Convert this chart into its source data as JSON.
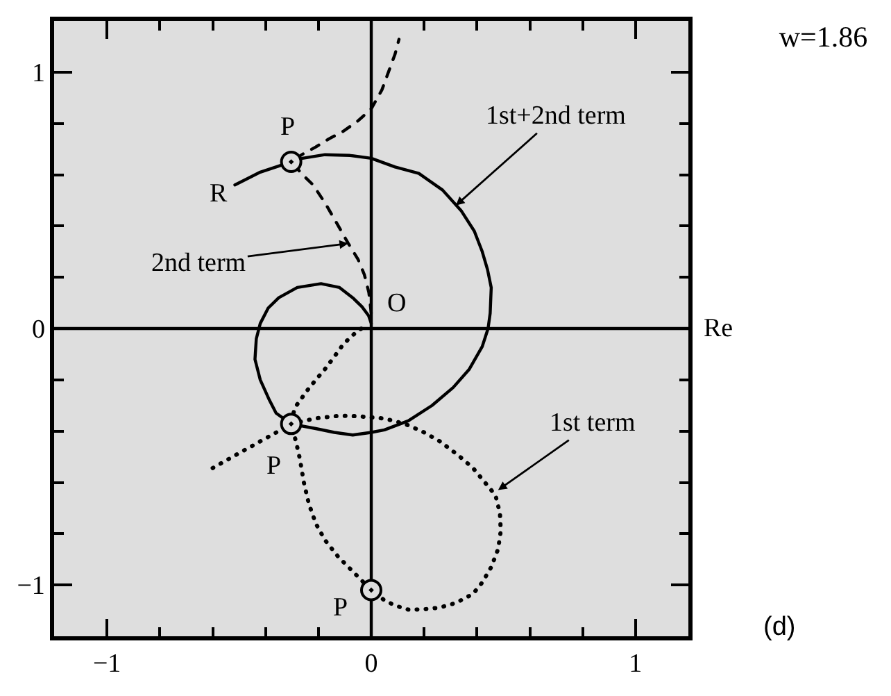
{
  "chart_data": {
    "type": "line",
    "title": "w=1.86",
    "xlim": [
      -1.2,
      1.2
    ],
    "ylim": [
      -1.2,
      1.2
    ],
    "xticks": [
      {
        "value": -1,
        "label": "−1"
      },
      {
        "value": -0.8,
        "label": null
      },
      {
        "value": -0.6,
        "label": null
      },
      {
        "value": -0.4,
        "label": null
      },
      {
        "value": -0.2,
        "label": null
      },
      0,
      {
        "value": 0.2,
        "label": null
      },
      {
        "value": 0.4,
        "label": null
      },
      {
        "value": 0.6,
        "label": null
      },
      {
        "value": 0.8,
        "label": null
      },
      1
    ],
    "yticks": [
      {
        "value": -1,
        "label": "−1"
      },
      {
        "value": -0.8,
        "label": null
      },
      {
        "value": -0.6,
        "label": null
      },
      {
        "value": -0.4,
        "label": null
      },
      {
        "value": -0.2,
        "label": null
      },
      0,
      {
        "value": 0.2,
        "label": null
      },
      {
        "value": 0.4,
        "label": null
      },
      {
        "value": 0.6,
        "label": null
      },
      {
        "value": 0.8,
        "label": null
      },
      1
    ],
    "series": [
      {
        "color": "#000000",
        "line_style": "solid",
        "x": [
          -0.516,
          -0.42,
          -0.303,
          -0.26,
          -0.175,
          -0.08,
          0,
          0.09,
          0.18,
          0.27,
          0.34,
          0.39,
          0.42,
          0.44,
          0.454,
          0.45,
          0.442,
          0.42,
          0.37,
          0.31,
          0.23,
          0.14,
          0.05,
          0,
          -0.07,
          -0.14,
          -0.21,
          -0.303,
          -0.36,
          -0.385,
          -0.42,
          -0.44,
          -0.435,
          -0.42,
          -0.39,
          -0.35,
          -0.28,
          -0.19,
          -0.12,
          -0.07,
          -0.035,
          -0.01,
          0
        ],
        "values": [
          0.56,
          0.61,
          0.65,
          0.664,
          0.678,
          0.675,
          0.664,
          0.63,
          0.605,
          0.54,
          0.46,
          0.38,
          0.3,
          0.23,
          0.16,
          0.06,
          0,
          -0.07,
          -0.16,
          -0.23,
          -0.3,
          -0.36,
          -0.395,
          -0.405,
          -0.415,
          -0.405,
          -0.39,
          -0.372,
          -0.33,
          -0.28,
          -0.2,
          -0.12,
          -0.04,
          0.02,
          0.08,
          0.12,
          0.16,
          0.175,
          0.16,
          0.12,
          0.085,
          0.05,
          0.02
        ]
      },
      {
        "color": "#000000",
        "line_style": "dashed",
        "x": [
          0,
          -0.009,
          -0.026,
          -0.05,
          -0.087,
          -0.13,
          -0.175,
          -0.22,
          -0.254,
          -0.303,
          -0.26,
          -0.21,
          -0.16,
          -0.105,
          -0.05,
          0,
          0.04,
          0.07,
          0.09,
          0.105
        ],
        "values": [
          0.06,
          0.14,
          0.21,
          0.27,
          0.332,
          0.41,
          0.49,
          0.56,
          0.594,
          0.65,
          0.68,
          0.708,
          0.74,
          0.77,
          0.81,
          0.857,
          0.93,
          1.014,
          1.07,
          1.128
        ]
      },
      {
        "color": "#000000",
        "line_style": "dotted",
        "x": [
          -0.6,
          -0.49,
          -0.385,
          -0.303,
          -0.21,
          -0.12,
          -0.05,
          0.04,
          0.087,
          0.14,
          0.2,
          0.26,
          0.33,
          0.385,
          0.43,
          0.47,
          0.487,
          0.49,
          0.48,
          0.454,
          0.42,
          0.385,
          0.32,
          0.26,
          0.2,
          0.14,
          0.09,
          0.05,
          0,
          -0.07,
          -0.125,
          -0.175,
          -0.21,
          -0.236,
          -0.255,
          -0.27,
          -0.285,
          -0.303,
          -0.29,
          -0.245,
          -0.21,
          -0.175,
          -0.14,
          -0.105,
          -0.052,
          -0.02
        ],
        "values": [
          -0.544,
          -0.48,
          -0.42,
          -0.372,
          -0.35,
          -0.34,
          -0.342,
          -0.35,
          -0.36,
          -0.377,
          -0.405,
          -0.44,
          -0.495,
          -0.544,
          -0.6,
          -0.65,
          -0.72,
          -0.79,
          -0.86,
          -0.93,
          -0.99,
          -1.035,
          -1.07,
          -1.088,
          -1.095,
          -1.096,
          -1.08,
          -1.06,
          -1.02,
          -0.947,
          -0.89,
          -0.825,
          -0.76,
          -0.684,
          -0.6,
          -0.509,
          -0.44,
          -0.372,
          -0.31,
          -0.245,
          -0.2,
          -0.158,
          -0.11,
          -0.06,
          -0.009,
          0.01
        ]
      },
      {
        "type": "scatter",
        "color": "#000000",
        "marker": "circle",
        "x": [
          -0.303,
          -0.303,
          0
        ],
        "values": [
          0.65,
          -0.372,
          -1.02
        ]
      }
    ],
    "ref_lines": [
      {
        "axis": "y",
        "value": 0,
        "label": "Re",
        "color": "#000000"
      },
      {
        "axis": "x",
        "value": 0,
        "color": "#000000"
      }
    ],
    "annotations": [
      {
        "text": "1st+2nd term",
        "x": 0.32,
        "y": 0.48
      },
      {
        "text": "2nd term",
        "x": -0.087,
        "y": 0.332
      },
      {
        "text": "1st term",
        "x": 0.48,
        "y": -0.63
      },
      {
        "text": "P",
        "x": -0.303,
        "y": 0.65
      },
      {
        "text": "P",
        "x": -0.303,
        "y": -0.372
      },
      {
        "text": "P",
        "x": 0,
        "y": -1.02
      },
      {
        "text": "R",
        "x": -0.516,
        "y": 0.56
      },
      {
        "text": "O",
        "x": 0,
        "y": 0
      },
      "(d)"
    ]
  }
}
